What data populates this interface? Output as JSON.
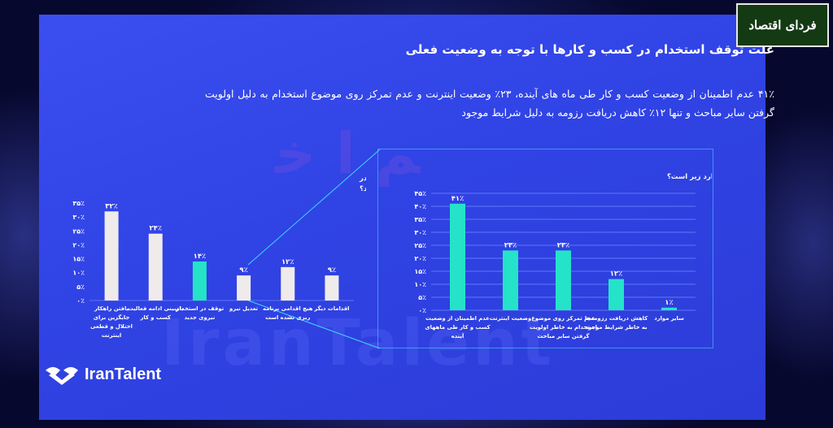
{
  "brand": {
    "label": "فردای اقتصاد"
  },
  "slide": {
    "title": "علت توقف استخدام در کسب و کارها با توجه به وضعیت فعلی",
    "description": "۴۱٪ عدم اطمینان از وضعیت کسب و کار طی ماه های آینده، ۲۳٪ وضعیت اینترنت و عدم تمرکز روی موضوع استخدام به دلیل اولویت گرفتن سایر مباحث و تنها ۱۲٪ کاهش دریافت رزومه به دلیل شرایط موجود",
    "watermark": "IranTalent"
  },
  "logo": {
    "text": "IranTalent"
  },
  "colors": {
    "accent": "#24e3c8",
    "neutral": "#f0ebeb",
    "grid": "#6f8cff",
    "brand_bg": "#143a14"
  },
  "chart_data": [
    {
      "type": "bar",
      "title": "با توجه به وضعیت فعلی چه اقداماتی را جهت برنامه ریزی تا پایان سال در نظر گرفته اید؟",
      "title_lines": [
        "با توجه به وضعیت فعلی چه اقداماتی را جهت برنامه ریزی تا پایان سال در",
        "نظر گرفته اید؟"
      ],
      "categories": [
        [
          "یافتن راهکار",
          "جایگزین برای",
          "اختلال و قطعی",
          "اینترنت"
        ],
        [
          "بازبینی ادامه فعالیت",
          "کسب و کار"
        ],
        [
          "توقف در استخدام",
          "نیروی جدید"
        ],
        [
          "تعدیل نیرو"
        ],
        [
          "هیچ اقدامی برنامه",
          "ریزی نشده است"
        ],
        [
          "اقدامات دیگر"
        ]
      ],
      "values": [
        32,
        24,
        14,
        9,
        12,
        9
      ],
      "value_labels": [
        "۳۲٪",
        "۲۴٪",
        "۱۴٪",
        "۹٪",
        "۱۲٪",
        "۹٪"
      ],
      "highlight_index": 2,
      "ylim": [
        0,
        35
      ],
      "yticks": [
        "۰٪",
        "۵٪",
        "۱۰٪",
        "۱۵٪",
        "۲۰٪",
        "۲۵٪",
        "۳۰٪",
        "۳۵٪"
      ],
      "grid": false
    },
    {
      "type": "bar",
      "title": "علت توقف استخدام نیروی جدید کدامیک از موارد زیر است؟",
      "title_lines": [
        "علت توقف استخدام نیروی جدید کدامیک از موارد زیر است؟"
      ],
      "categories": [
        [
          "عدم اطمینان از وضعیت",
          "کسب و کار طی ماههای",
          "آینده"
        ],
        [
          "وضعیت اینترنت"
        ],
        [
          "عدم تمرکز روی موضوع",
          "استخدام به خاطر اولویت",
          "گرفتن سایر مباحث"
        ],
        [
          "کاهش دریافت رزومه‌ها",
          "به خاطر شرایط موجود"
        ],
        [
          "سایر موارد"
        ]
      ],
      "values": [
        41,
        23,
        23,
        12,
        1
      ],
      "value_labels": [
        "۴۱٪",
        "۲۳٪",
        "۲۳٪",
        "۱۲٪",
        "۱٪"
      ],
      "ylim": [
        0,
        45
      ],
      "yticks": [
        "۰٪",
        "۵٪",
        "۱۰٪",
        "۱۵٪",
        "۲۰٪",
        "۲۵٪",
        "۳۰٪",
        "۳۵٪",
        "۴۰٪",
        "۴۵٪"
      ],
      "grid": true
    }
  ]
}
